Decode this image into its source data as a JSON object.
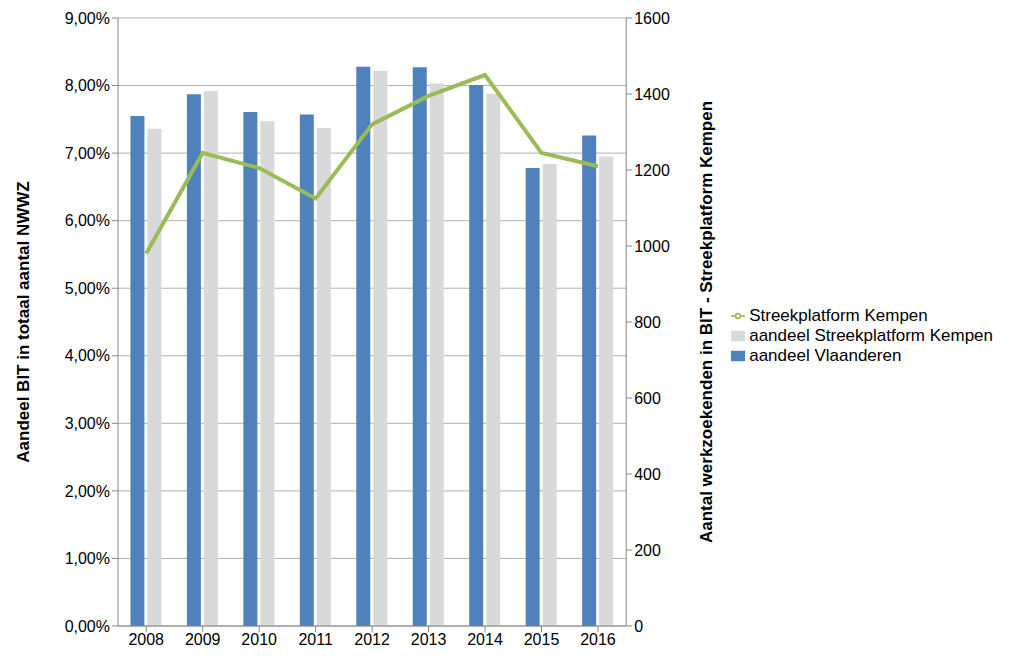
{
  "chart_data": {
    "type": "bar",
    "categories": [
      "2008",
      "2009",
      "2010",
      "2011",
      "2012",
      "2013",
      "2014",
      "2015",
      "2016"
    ],
    "series": [
      {
        "name": "aandeel Vlaanderen",
        "color": "#4f81bd",
        "values": [
          7.55,
          7.87,
          7.61,
          7.57,
          8.28,
          8.27,
          8.01,
          6.78,
          7.26
        ]
      },
      {
        "name": "aandeel Streekplatform Kempen",
        "color": "#d9d9d9",
        "values": [
          7.36,
          7.92,
          7.47,
          7.37,
          8.22,
          8.03,
          7.88,
          6.84,
          6.95
        ]
      },
      {
        "name": "Streekplatform Kempen",
        "type": "line",
        "axis": "y2",
        "color": "#9bbb59",
        "values": [
          980,
          1245,
          1205,
          1125,
          1320,
          1395,
          1450,
          1245,
          1210
        ]
      }
    ],
    "y_label": "Aandeel BIT in totaal aantal NWWZ",
    "y2_label": "Aantal werkzoekenden in BIT - Streekplatform Kempen",
    "ylim": [
      0,
      9
    ],
    "yticks": [
      {
        "value": 0,
        "label": "0,00%"
      },
      {
        "value": 1,
        "label": "1,00%"
      },
      {
        "value": 2,
        "label": "2,00%"
      },
      {
        "value": 3,
        "label": "3,00%"
      },
      {
        "value": 4,
        "label": "4,00%"
      },
      {
        "value": 5,
        "label": "5,00%"
      },
      {
        "value": 6,
        "label": "6,00%"
      },
      {
        "value": 7,
        "label": "7,00%"
      },
      {
        "value": 8,
        "label": "8,00%"
      },
      {
        "value": 9,
        "label": "9,00%"
      }
    ],
    "y2lim": [
      0,
      1600
    ],
    "y2ticks": [
      0,
      200,
      400,
      600,
      800,
      1000,
      1200,
      1400,
      1600
    ],
    "grid": true,
    "legend": "right"
  }
}
